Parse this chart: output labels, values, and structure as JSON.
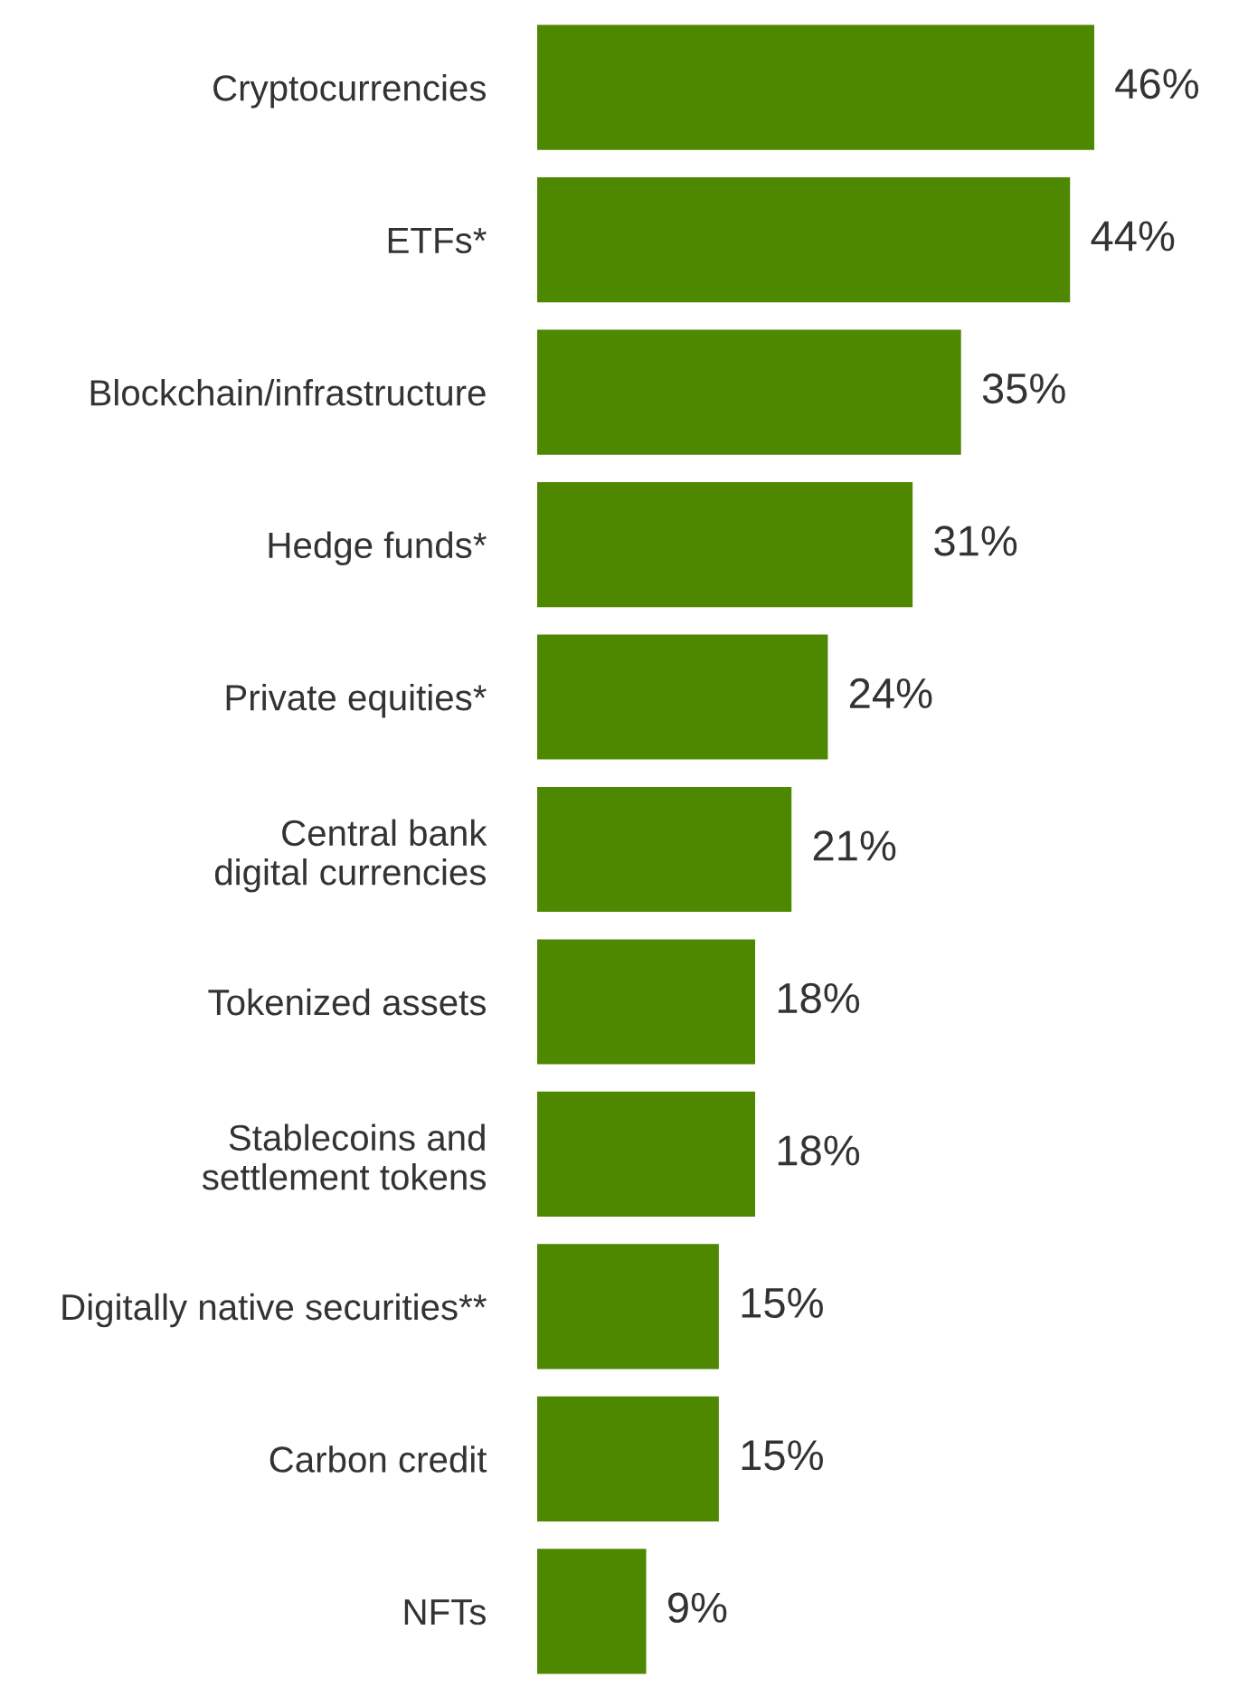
{
  "chart_data": {
    "type": "bar",
    "orientation": "horizontal",
    "categories": [
      "Cryptocurrencies",
      "ETFs*",
      "Blockchain/infrastructure",
      "Hedge funds*",
      "Private equities*",
      "Central bank\ndigital currencies",
      "Tokenized assets",
      "Stablecoins and\nsettlement tokens",
      "Digitally native securities**",
      "Carbon credit",
      "NFTs"
    ],
    "values": [
      46,
      44,
      35,
      31,
      24,
      21,
      18,
      18,
      15,
      15,
      9
    ],
    "value_labels": [
      "46%",
      "44%",
      "35%",
      "31%",
      "24%",
      "21%",
      "18%",
      "18%",
      "15%",
      "15%",
      "9%"
    ],
    "color": "#4e8700",
    "tick_labels": "y",
    "grid": false,
    "legend": false
  }
}
